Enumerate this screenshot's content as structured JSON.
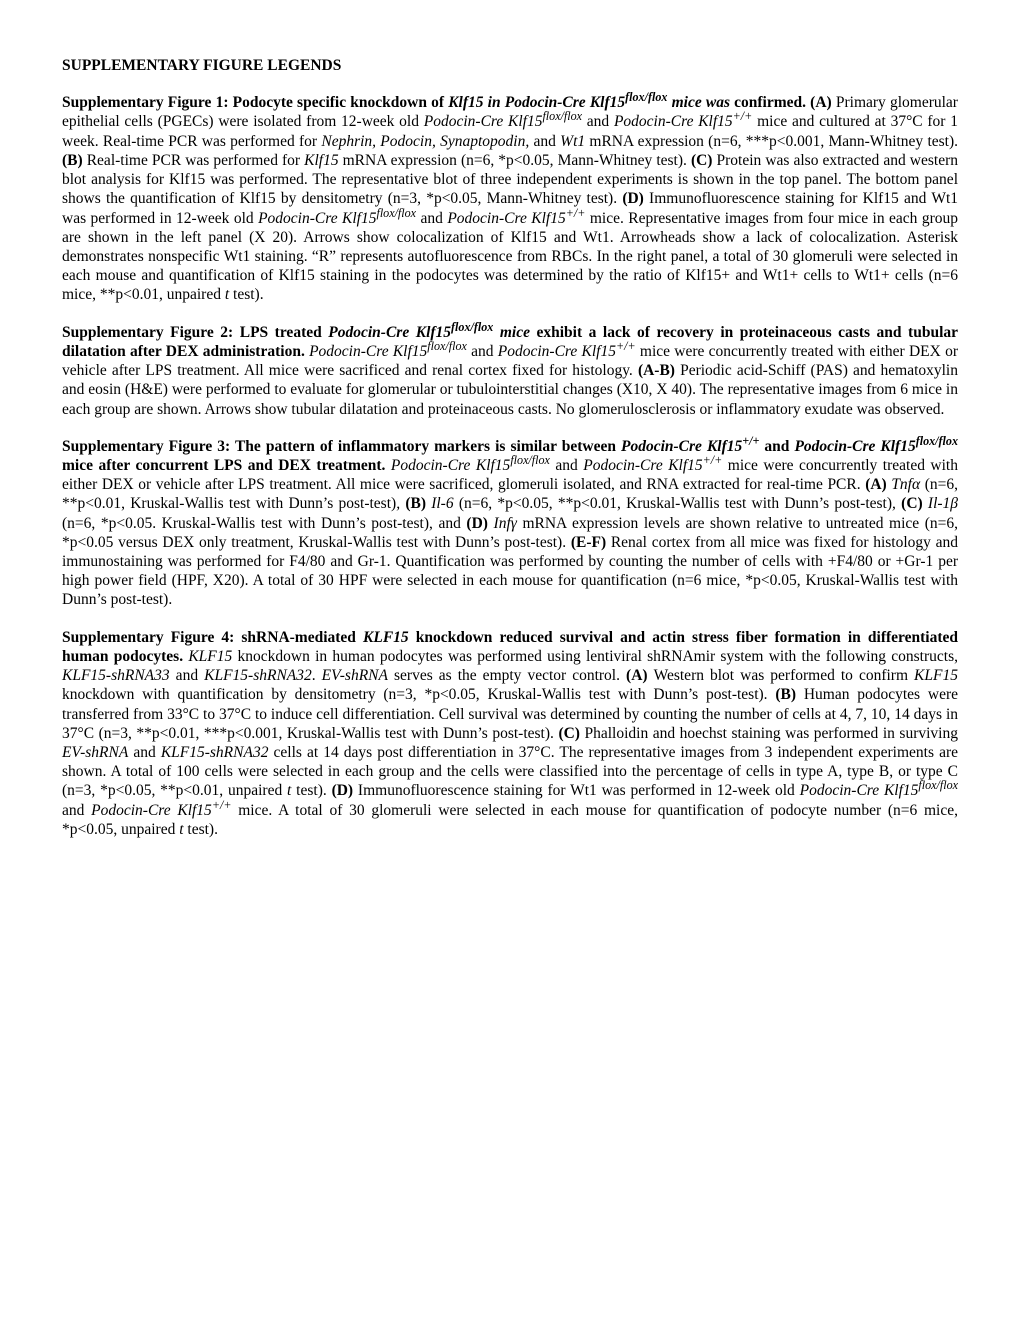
{
  "title": "SUPPLEMENTARY FIGURE LEGENDS",
  "figures": [
    {
      "heading_pre": "Supplementary Figure 1: Podocyte specific knockdown of ",
      "heading_em": "Klf15 in Podocin-Cre Klf15",
      "heading_sup": "flox/flox",
      "heading_em2": " mice was",
      "heading_post": " confirmed. (A) ",
      "body": "Primary glomerular epithelial cells (PGECs) were isolated from 12-week old ",
      "body_frags": {
        "a1_em": "Podocin-Cre Klf15",
        "a1_sup": "flox/flox",
        "a2": " and ",
        "a3_em": "Podocin-Cre Klf15",
        "a3_sup": "+/+",
        "a4": " mice and cultured at 37°C for 1 week. Real-time PCR was performed for ",
        "a5_em": "Nephrin, Podocin, Synaptopodin,",
        "a6": " and ",
        "a7_em": "Wt1",
        "a8": " mRNA expression (n=6, ***p<0.001, Mann-Whitney test). ",
        "b_label": "(B) ",
        "b1": "Real-time PCR was performed for ",
        "b2_em": "Klf15",
        "b3": " mRNA expression (n=6, *p<0.05, Mann-Whitney test). ",
        "c_label": "(C) ",
        "c1": "Protein was also extracted and western blot analysis for Klf15 was performed. The representative blot of three independent experiments is shown in the top panel. The bottom panel shows the quantification of Klf15 by densitometry (n=3, *p<0.05, Mann-Whitney test).  ",
        "d_label": "(D) ",
        "d1": "Immunofluorescence staining for Klf15 and Wt1 was performed in 12-week old ",
        "d2_em": "Podocin-Cre Klf15",
        "d2_sup": "flox/flox",
        "d3": " and ",
        "d4_em": "Podocin-Cre Klf15",
        "d4_sup": "+/+",
        "d5": " mice. Representative images from four mice in each group are shown in the left panel (X 20). Arrows show colocalization of Klf15 and Wt1. Arrowheads show a lack of colocalization. Asterisk demonstrates nonspecific Wt1 staining. “R” represents autofluorescence from RBCs. In the right panel, a total of 30 glomeruli were selected in each mouse and quantification of Klf15 staining in the podocytes was determined by the ratio of Klf15+ and Wt1+ cells to Wt1+ cells (n=6 mice, **p<0.01, unpaired ",
        "d6_em": "t",
        "d7": " test)."
      }
    },
    {
      "heading_pre": "Supplementary Figure 2: LPS treated ",
      "heading_em": "Podocin-Cre Klf15",
      "heading_sup": "flox/flox",
      "heading_em2": " mice ",
      "heading_post": "exhibit a lack of recovery in proteinaceous casts and tubular dilatation after DEX administration. ",
      "body_frags": {
        "a1_em": "Podocin-Cre Klf15",
        "a1_sup": "flox/flox",
        "a2": " and ",
        "a3_em": "Podocin-Cre Klf15",
        "a3_sup": "+/+",
        "a4": " mice were concurrently treated with either DEX or vehicle after LPS treatment. All mice were sacrificed and renal cortex fixed for histology. ",
        "ab_label": "(A-B) ",
        "ab1": "Periodic acid-Schiff (PAS) and hematoxylin and eosin (H&E) were performed to evaluate for glomerular or tubulointerstitial changes (X10, X 40). The representative images from 6 mice in each group are shown. Arrows show tubular dilatation and proteinaceous casts. No glomerulosclerosis or inflammatory exudate was observed."
      }
    },
    {
      "heading_pre": "Supplementary Figure 3: The pattern of inflammatory markers is similar between ",
      "heading_em": "Podocin-Cre Klf15",
      "heading_sup": "+/+",
      "heading_post2_pre": " and ",
      "heading_em2": "Podocin-Cre Klf15",
      "heading_sup2": "flox/flox",
      "heading_post2": " mice after concurrent LPS and DEX treatment. ",
      "body_frags": {
        "a0_em": "Podocin-Cre Klf15",
        "a0_sup": "flox/flox",
        "a1": " and ",
        "a2_em": "Podocin-Cre Klf15",
        "a2_sup": "+/+",
        "a3": " mice were concurrently treated with either DEX or vehicle after LPS treatment. All mice were sacrificed, glomeruli isolated, and RNA extracted for real-time PCR. ",
        "A_label": "(A) ",
        "A_em": "Tnfα",
        "A_txt": " (n=6, **p<0.01, Kruskal-Wallis test with Dunn’s post-test)",
        "B_label": "(B) ",
        "B_em": "Il-6",
        "B_txt": " (n=6, *p<0.05, **p<0.01, Kruskal-Wallis test with Dunn’s post-test)",
        "C_label": "(C) ",
        "C_em": "Il-1β",
        "C_txt": " (n=6, *p<0.05. Kruskal-Wallis test with Dunn’s post-test), and ",
        "D_label": "(D) ",
        "D_em": "Infγ",
        "D_txt": " mRNA expression levels are shown relative to untreated mice (n=6, *p<0.05 versus DEX only treatment, Kruskal-Wallis test with Dunn’s post-test). ",
        "EF_label": "(E-F) ",
        "EF_txt": "Renal cortex from all mice was fixed for histology and immunostaining was performed for F4/80 and Gr-1. Quantification was performed by counting the number of cells with +F4/80 or +Gr-1 per high power field (HPF, X20). A total of 30 HPF were selected in each mouse for quantification (n=6 mice, *p<0.05, Kruskal-Wallis test with Dunn’s post-test)."
      }
    },
    {
      "heading_pre": "Supplementary Figure 4: shRNA-mediated ",
      "heading_em": "KLF15",
      "heading_post": " knockdown reduced survival and actin stress fiber formation in differentiated human podocytes. ",
      "body_frags": {
        "intro_em": "KLF15",
        "intro_txt": " knockdown in human podocytes was performed using lentiviral shRNAmir system with the following constructs, ",
        "c1_em": "KLF15-shRNA33",
        "c2": " and ",
        "c3_em": "KLF15-shRNA32",
        "c4": ". ",
        "c5_em": "EV-shRNA",
        "c6": " serves as the empty vector control. ",
        "A_label": "(A) ",
        "A_txt": "Western blot was performed to confirm ",
        "A_em": "KLF15",
        "A_txt2": " knockdown with quantification by densitometry (n=3, *p<0.05, Kruskal-Wallis test with Dunn’s post-test). ",
        "B_label": "(B) ",
        "B_txt": "Human podocytes were transferred from 33°C to 37°C to induce cell differentiation. Cell survival was determined by counting the number of cells at 4, 7, 10, 14 days in 37°C (n=3, **p<0.01, ***p<0.001, Kruskal-Wallis test with Dunn’s post-test). ",
        "C_label": "(C) ",
        "C_txt": "Phalloidin and hoechst staining was performed in surviving ",
        "C_em1": "EV-shRNA",
        "C_txt2": " and ",
        "C_em2": "KLF15-shRNA32",
        "C_txt3": " cells at 14 days post differentiation in 37°C. The representative images from 3 independent experiments are shown. A total of 100 cells were selected in each group and the cells were classified into the percentage of cells in type A, type B, or type C (n=3, *p<0.05, **p<0.01, unpaired ",
        "C_em3": "t",
        "C_txt4": " test). ",
        "D_label": "(D) ",
        "D_txt": "Immunofluorescence staining for Wt1 was performed in 12-week old ",
        "D_em1": "Podocin-Cre Klf15",
        "D_sup1": "flox/flox",
        "D_txt2": " and ",
        "D_em2": "Podocin-Cre Klf15",
        "D_sup2": "+/+",
        "D_txt3": " mice. A total of 30 glomeruli were selected in each mouse for quantification of podocyte number (n=6 mice, *p<0.05, unpaired ",
        "D_em3": "t",
        "D_txt4": " test)."
      }
    }
  ]
}
